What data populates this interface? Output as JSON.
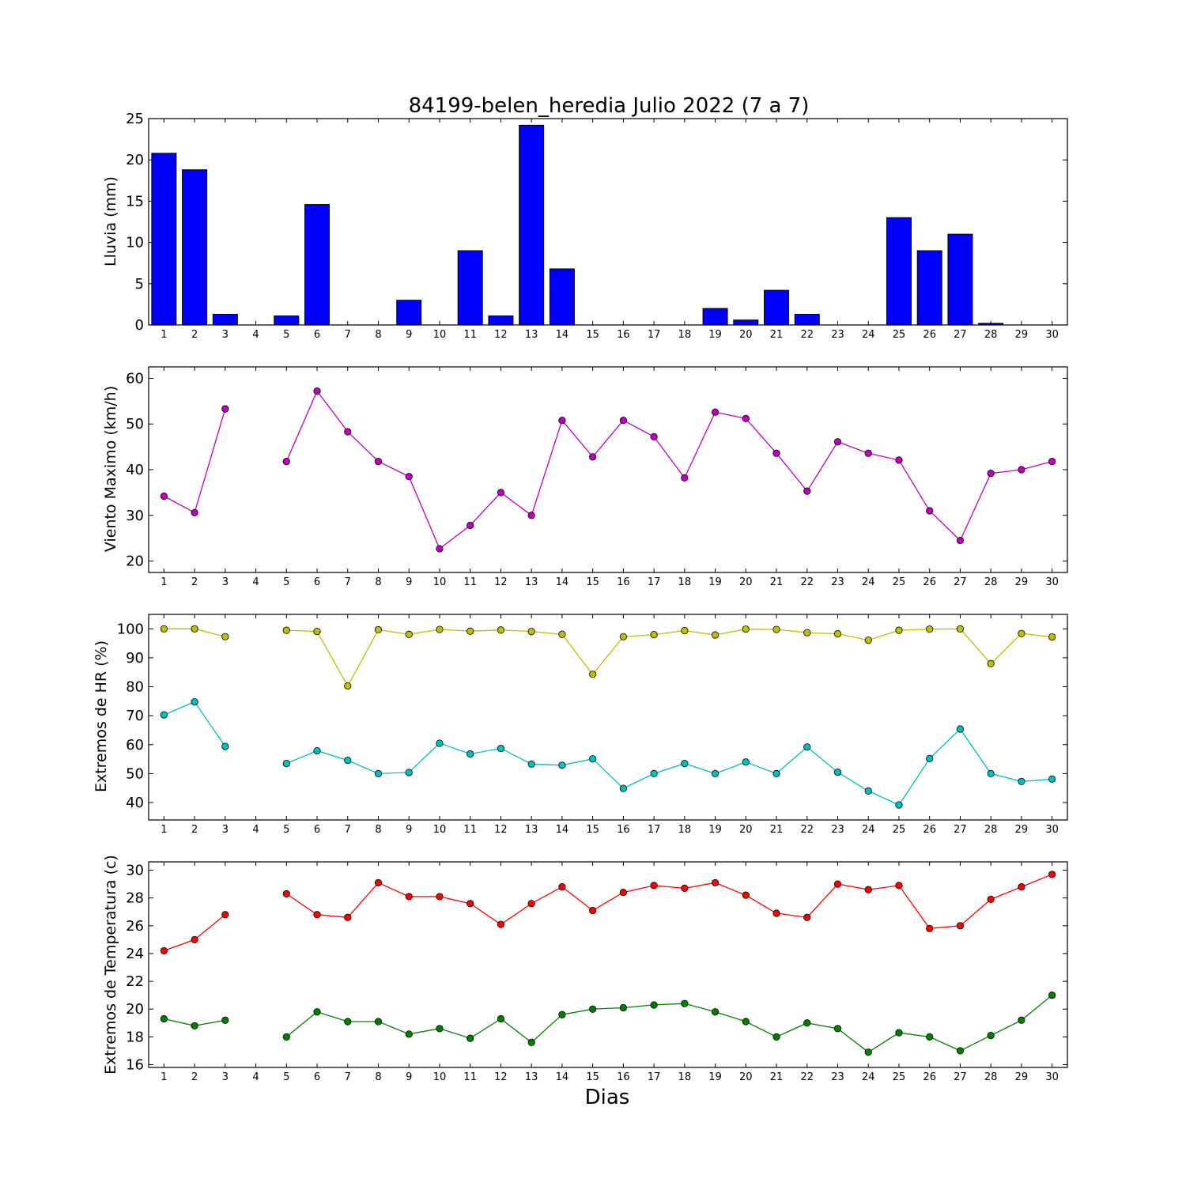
{
  "chart_data": [
    {
      "type": "bar",
      "title": "84199-belen_heredia Julio 2022  (7 a 7)",
      "ylabel": "Lluvia (mm)",
      "xlabel": "",
      "ylim": [
        0,
        25
      ],
      "yticks": [
        0,
        5,
        10,
        15,
        20,
        25
      ],
      "x": [
        1,
        2,
        3,
        4,
        5,
        6,
        7,
        8,
        9,
        10,
        11,
        12,
        13,
        14,
        15,
        16,
        17,
        18,
        19,
        20,
        21,
        22,
        23,
        24,
        25,
        26,
        27,
        28,
        29,
        30
      ],
      "series": [
        {
          "color": "#0000ff",
          "values": [
            20.8,
            18.8,
            1.3,
            null,
            1.1,
            14.6,
            0,
            0,
            3.0,
            0,
            9.0,
            1.1,
            24.2,
            6.8,
            0,
            0,
            0,
            0,
            2.0,
            0.6,
            4.2,
            1.3,
            0,
            0,
            13.0,
            9.0,
            11.0,
            0.2,
            0,
            0
          ]
        }
      ]
    },
    {
      "type": "line",
      "title": "",
      "ylabel": "Viento Maximo (km/h)",
      "xlabel": "",
      "ylim": [
        17.5,
        62.5
      ],
      "yticks": [
        20,
        30,
        40,
        50,
        60
      ],
      "x": [
        1,
        2,
        3,
        4,
        5,
        6,
        7,
        8,
        9,
        10,
        11,
        12,
        13,
        14,
        15,
        16,
        17,
        18,
        19,
        20,
        21,
        22,
        23,
        24,
        25,
        26,
        27,
        28,
        29,
        30
      ],
      "series": [
        {
          "color": "#bf00bf",
          "values": [
            34.2,
            30.6,
            53.3,
            null,
            41.8,
            57.2,
            48.3,
            41.8,
            38.5,
            22.7,
            27.8,
            35.0,
            30.0,
            50.8,
            42.8,
            50.8,
            47.2,
            38.2,
            52.6,
            51.2,
            43.6,
            35.3,
            46.1,
            43.6,
            42.1,
            31.0,
            24.5,
            39.2,
            40.0,
            41.8
          ]
        }
      ]
    },
    {
      "type": "line",
      "title": "",
      "ylabel": "Extremos de HR (%)",
      "xlabel": "",
      "ylim": [
        34,
        105
      ],
      "yticks": [
        40,
        50,
        60,
        70,
        80,
        90,
        100
      ],
      "x": [
        1,
        2,
        3,
        4,
        5,
        6,
        7,
        8,
        9,
        10,
        11,
        12,
        13,
        14,
        15,
        16,
        17,
        18,
        19,
        20,
        21,
        22,
        23,
        24,
        25,
        26,
        27,
        28,
        29,
        30
      ],
      "series": [
        {
          "color": "#bfbf00",
          "values": [
            100,
            100,
            97.3,
            null,
            99.5,
            99.1,
            80.3,
            99.7,
            98.1,
            99.8,
            99.2,
            99.6,
            99.1,
            98.1,
            84.3,
            97.3,
            98.0,
            99.4,
            97.9,
            99.9,
            99.8,
            98.7,
            98.3,
            96.1,
            99.5,
            99.9,
            100,
            88.0,
            98.4,
            97.2
          ]
        },
        {
          "color": "#00bfbf",
          "values": [
            70.3,
            74.8,
            59.4,
            null,
            53.5,
            57.9,
            54.6,
            50.0,
            50.4,
            60.5,
            56.8,
            58.7,
            53.3,
            52.9,
            55.1,
            44.9,
            50.0,
            53.5,
            50.0,
            54.0,
            50.0,
            59.2,
            50.5,
            44.0,
            39.2,
            55.2,
            65.4,
            50.0,
            47.3,
            48.1
          ]
        }
      ]
    },
    {
      "type": "line",
      "title": "",
      "ylabel": "Extremos de Temperatura (c)",
      "xlabel": "Dias",
      "ylim": [
        15.8,
        30.6
      ],
      "yticks": [
        16,
        18,
        20,
        22,
        24,
        26,
        28,
        30
      ],
      "x": [
        1,
        2,
        3,
        4,
        5,
        6,
        7,
        8,
        9,
        10,
        11,
        12,
        13,
        14,
        15,
        16,
        17,
        18,
        19,
        20,
        21,
        22,
        23,
        24,
        25,
        26,
        27,
        28,
        29,
        30
      ],
      "series": [
        {
          "color": "#ff0000",
          "values": [
            24.2,
            25.0,
            26.8,
            null,
            28.3,
            26.8,
            26.6,
            29.1,
            28.1,
            28.1,
            27.6,
            26.1,
            27.6,
            28.8,
            27.1,
            28.4,
            28.9,
            28.7,
            29.1,
            28.2,
            26.9,
            26.6,
            29.0,
            28.6,
            28.9,
            25.8,
            26.0,
            27.9,
            28.8,
            29.7
          ]
        },
        {
          "color": "#008000",
          "values": [
            19.3,
            18.8,
            19.2,
            null,
            18.0,
            19.8,
            19.1,
            19.1,
            18.2,
            18.6,
            17.9,
            19.3,
            17.6,
            19.6,
            20.0,
            20.1,
            20.3,
            20.4,
            19.8,
            19.1,
            18.0,
            19.0,
            18.6,
            16.9,
            18.3,
            18.0,
            17.0,
            18.1,
            19.2,
            21.0
          ]
        }
      ]
    }
  ]
}
